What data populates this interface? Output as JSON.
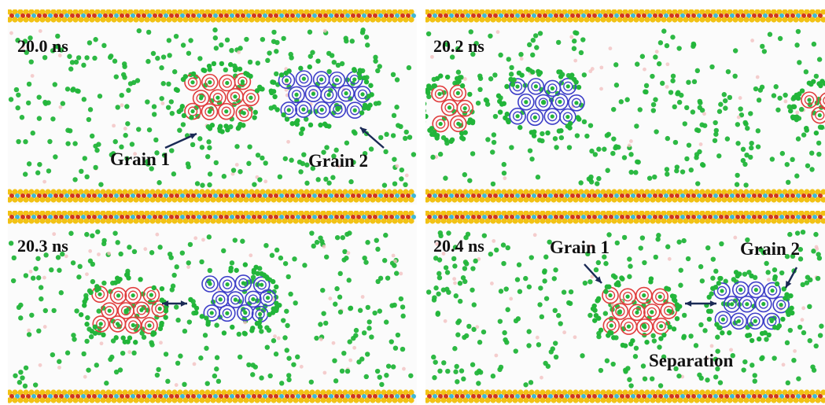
{
  "figure": {
    "panels": [
      {
        "time": "20.0 ns",
        "annotations": {
          "grain_a": "Grain 1",
          "grain_b": "Grain 2"
        }
      },
      {
        "time": "20.2 ns"
      },
      {
        "time": "20.3 ns"
      },
      {
        "time": "20.4 ns",
        "annotations": {
          "grain_a": "Grain 1",
          "grain_b": "Grain 2",
          "separation": "Separation"
        }
      }
    ]
  },
  "colors": {
    "grain_1": "#e03c3c",
    "grain_2": "#3d3ec8",
    "solute_particles": "#22b53a",
    "wall_gold": "#f2c215",
    "wall_red": "#d0361f",
    "wall_cyan": "#3fb7d4",
    "arrow": "#1a2a55"
  }
}
